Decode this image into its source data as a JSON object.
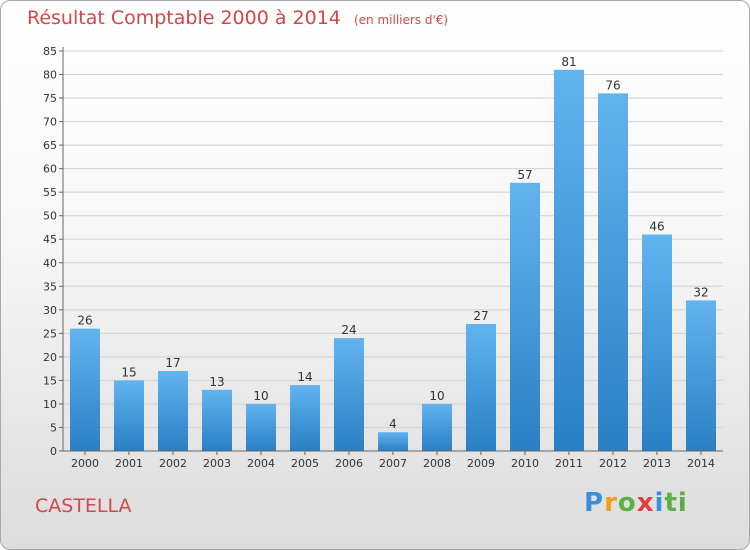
{
  "header": {
    "title": "Résultat Comptable 2000 à 2014",
    "unit": "(en milliers d'€)"
  },
  "commune": "CASTELLA",
  "logo": [
    "P",
    "r",
    "o",
    "x",
    "i",
    "t",
    "i"
  ],
  "colors": {
    "bar_light": "#62b4ef",
    "bar_dark": "#2a7fc4",
    "title": "#d04848",
    "grid": "#d2d2d2"
  },
  "chart_data": {
    "type": "bar",
    "title": "Résultat Comptable 2000 à 2014",
    "subtitle": "(en milliers d'€)",
    "xlabel": "",
    "ylabel": "",
    "categories": [
      "2000",
      "2001",
      "2002",
      "2003",
      "2004",
      "2005",
      "2006",
      "2007",
      "2008",
      "2009",
      "2010",
      "2011",
      "2012",
      "2013",
      "2014"
    ],
    "values": [
      26,
      15,
      17,
      13,
      10,
      14,
      24,
      4,
      10,
      27,
      57,
      81,
      76,
      46,
      32
    ],
    "ylim": [
      0,
      85
    ],
    "yticks": [
      0,
      5,
      10,
      15,
      20,
      25,
      30,
      35,
      40,
      45,
      50,
      55,
      60,
      65,
      70,
      75,
      80,
      85
    ],
    "grid": true,
    "legend": "none"
  }
}
